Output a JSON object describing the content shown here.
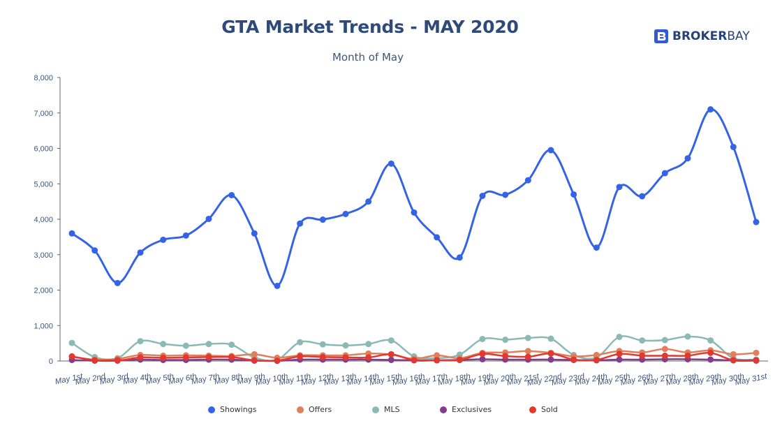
{
  "brand": {
    "logo_icon": "broker-bay-logo-icon",
    "name_bold": "BROKER",
    "name_light": "BAY",
    "color": "#2f5bd6"
  },
  "chart_data": {
    "type": "line",
    "title": "GTA Market Trends - MAY 2020",
    "subtitle": "Month of May",
    "xlabel": "",
    "ylabel": "",
    "ylim": [
      0,
      8000
    ],
    "yticks": [
      "0",
      "1,000",
      "2,000",
      "3,000",
      "4,000",
      "5,000",
      "6,000",
      "7,000",
      "8,000"
    ],
    "yticks_values": [
      0,
      1000,
      2000,
      3000,
      4000,
      5000,
      6000,
      7000,
      8000
    ],
    "grid": false,
    "legend_position": "bottom",
    "categories": [
      "May 1st",
      "May 2nd",
      "May 3rd",
      "May 4th",
      "May 5th",
      "May 6th",
      "May 7th",
      "May 8th",
      "May 9th",
      "May 10th",
      "May 11th",
      "May 12th",
      "May 13th",
      "May 14th",
      "May 15th",
      "May 16th",
      "May 17th",
      "May 18th",
      "May 19th",
      "May 20th",
      "May 21st",
      "May 22nd",
      "May 23rd",
      "May 24th",
      "May 25th",
      "May 26th",
      "May 27th",
      "May 28th",
      "May 29th",
      "May 30th",
      "May 31st"
    ],
    "series": [
      {
        "name": "Showings",
        "color": "#3463e6",
        "values": [
          3600,
          3120,
          2200,
          3060,
          3420,
          3540,
          4010,
          4680,
          3600,
          2120,
          3880,
          3990,
          4150,
          4500,
          5570,
          4190,
          3490,
          2920,
          4660,
          4690,
          5100,
          5950,
          4700,
          3200,
          4910,
          4650,
          5300,
          5720,
          7100,
          6040,
          3920
        ]
      },
      {
        "name": "Offers",
        "color": "#e07f5c",
        "values": [
          120,
          40,
          60,
          170,
          150,
          160,
          150,
          140,
          190,
          90,
          160,
          160,
          160,
          210,
          180,
          60,
          160,
          80,
          230,
          240,
          280,
          230,
          130,
          170,
          280,
          240,
          340,
          240,
          300,
          190,
          230
        ]
      },
      {
        "name": "MLS",
        "color": "#8bbab5",
        "values": [
          510,
          110,
          80,
          560,
          480,
          430,
          480,
          460,
          100,
          40,
          530,
          470,
          440,
          480,
          580,
          130,
          80,
          180,
          620,
          600,
          650,
          630,
          170,
          100,
          680,
          580,
          590,
          690,
          580,
          80,
          40
        ]
      },
      {
        "name": "Exclusives",
        "color": "#833d8a",
        "values": [
          30,
          10,
          20,
          40,
          30,
          30,
          40,
          40,
          10,
          5,
          40,
          40,
          40,
          40,
          30,
          20,
          20,
          30,
          50,
          40,
          40,
          40,
          30,
          20,
          40,
          40,
          50,
          50,
          40,
          20,
          20
        ]
      },
      {
        "name": "Sold",
        "color": "#e03a2e",
        "values": [
          130,
          20,
          10,
          100,
          90,
          100,
          110,
          110,
          20,
          10,
          130,
          110,
          100,
          100,
          190,
          20,
          20,
          30,
          200,
          140,
          120,
          210,
          40,
          30,
          200,
          150,
          150,
          150,
          230,
          20,
          10
        ]
      }
    ]
  }
}
